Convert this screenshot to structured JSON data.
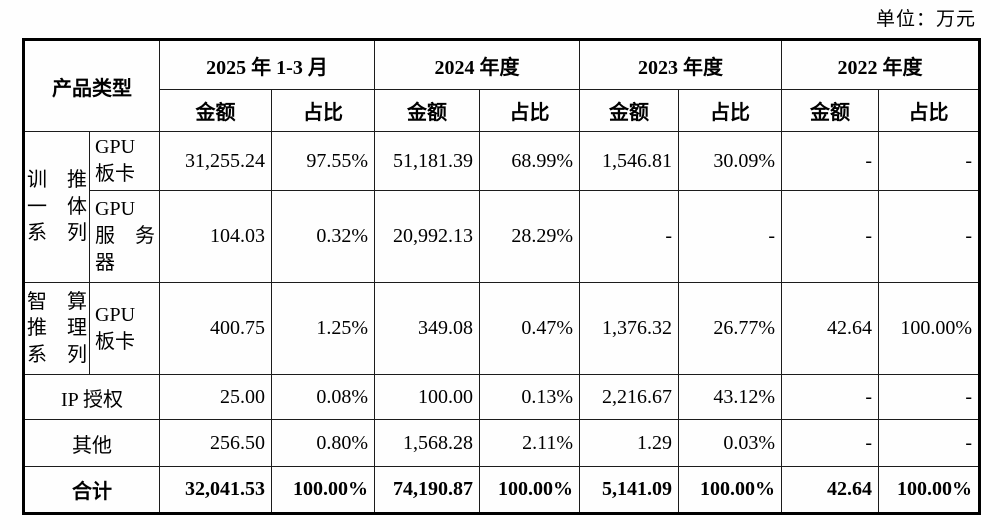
{
  "unit_label": "单位：万元",
  "table": {
    "header": {
      "product_type": "产品类型",
      "periods": [
        "2025 年 1-3 月",
        "2024 年度",
        "2023 年度",
        "2022 年度"
      ],
      "amount_label": "金额",
      "ratio_label": "占比"
    },
    "rows": {
      "r1": {
        "group": [
          "训　推",
          "一　体",
          "系　列"
        ],
        "product": [
          "GPU",
          "板卡"
        ],
        "v": [
          "31,255.24",
          "97.55%",
          "51,181.39",
          "68.99%",
          "1,546.81",
          "30.09%",
          "-",
          "-"
        ]
      },
      "r2": {
        "product": [
          "GPU",
          "服　务",
          "器"
        ],
        "v": [
          "104.03",
          "0.32%",
          "20,992.13",
          "28.29%",
          "-",
          "-",
          "-",
          "-"
        ]
      },
      "r3": {
        "group": [
          "智　算",
          "推　理",
          "系　列"
        ],
        "product": [
          "GPU",
          "板卡"
        ],
        "v": [
          "400.75",
          "1.25%",
          "349.08",
          "0.47%",
          "1,376.32",
          "26.77%",
          "42.64",
          "100.00%"
        ]
      },
      "r4": {
        "label": "IP 授权",
        "v": [
          "25.00",
          "0.08%",
          "100.00",
          "0.13%",
          "2,216.67",
          "43.12%",
          "-",
          "-"
        ]
      },
      "r5": {
        "label": "其他",
        "v": [
          "256.50",
          "0.80%",
          "1,568.28",
          "2.11%",
          "1.29",
          "0.03%",
          "-",
          "-"
        ]
      },
      "total": {
        "label": "合计",
        "v": [
          "32,041.53",
          "100.00%",
          "74,190.87",
          "100.00%",
          "5,141.09",
          "100.00%",
          "42.64",
          "100.00%"
        ]
      }
    }
  }
}
